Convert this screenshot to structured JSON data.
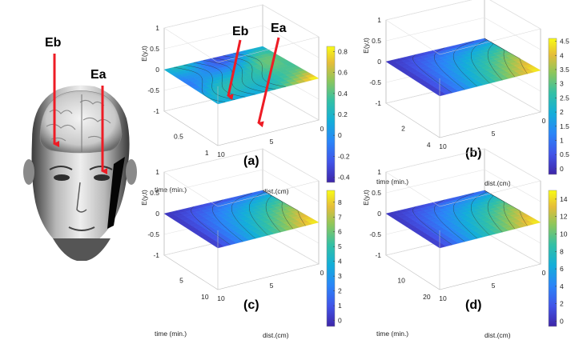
{
  "annotations": {
    "head_eb": "Eb",
    "head_ea": "Ea",
    "plot_eb": "Eb",
    "plot_ea": "Ea",
    "arrow_color": "#ee1c25"
  },
  "chart_data": [
    {
      "type": "surface",
      "panel_label": "(a)",
      "zlabel": "E(y,t)",
      "xlabel": "time (min.)",
      "ylabel": "dist.(cm)",
      "z_ticks": [
        "1",
        "0.5",
        "0",
        "-0.5",
        "-1"
      ],
      "x_ticks": [
        "0.5",
        "1"
      ],
      "y_ticks": [
        "10",
        "5",
        "0"
      ],
      "colorbar_ticks": [
        "0.8",
        "0.6",
        "0.4",
        "0.2",
        "0",
        "-0.2",
        "-0.4"
      ],
      "colorbar_range": [
        -0.45,
        0.85
      ]
    },
    {
      "type": "surface",
      "panel_label": "(b)",
      "zlabel": "E(y,t)",
      "xlabel": "time (min.)",
      "ylabel": "dist.(cm)",
      "z_ticks": [
        "1",
        "0.5",
        "0",
        "-0.5",
        "-1"
      ],
      "x_ticks": [
        "2",
        "4"
      ],
      "y_ticks": [
        "10",
        "5",
        "0"
      ],
      "colorbar_ticks": [
        "4.5",
        "4",
        "3.5",
        "3",
        "2.5",
        "2",
        "1.5",
        "1",
        "0.5",
        "0"
      ],
      "colorbar_range": [
        -0.2,
        4.6
      ]
    },
    {
      "type": "surface",
      "panel_label": "(c)",
      "zlabel": "E(y,t)",
      "xlabel": "time (min.)",
      "ylabel": "dist.(cm)",
      "z_ticks": [
        "1",
        "0.5",
        "0",
        "-0.5",
        "-1"
      ],
      "x_ticks": [
        "5",
        "10"
      ],
      "y_ticks": [
        "10",
        "5",
        "0"
      ],
      "colorbar_ticks": [
        "8",
        "7",
        "6",
        "5",
        "4",
        "3",
        "2",
        "1",
        "0"
      ],
      "colorbar_range": [
        -0.4,
        8.8
      ]
    },
    {
      "type": "surface",
      "panel_label": "(d)",
      "zlabel": "E(y,t)",
      "xlabel": "time (min.)",
      "ylabel": "dist.(cm)",
      "z_ticks": [
        "1",
        "0.5",
        "0",
        "-0.5",
        "-1"
      ],
      "x_ticks": [
        "10",
        "20"
      ],
      "y_ticks": [
        "10",
        "5",
        "0"
      ],
      "colorbar_ticks": [
        "14",
        "12",
        "10",
        "8",
        "6",
        "4",
        "2",
        "0"
      ],
      "colorbar_range": [
        -0.6,
        15
      ]
    }
  ]
}
